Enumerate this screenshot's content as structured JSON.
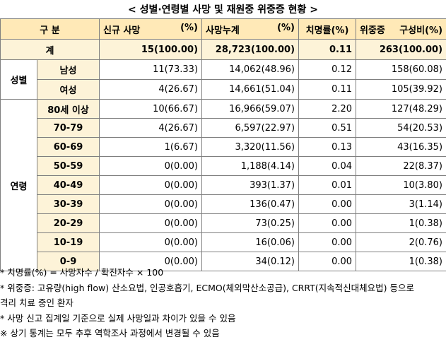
{
  "title": "< 성별·연령별 사망 및 재원중 위중증 현황 >",
  "header": {
    "category": "구 분",
    "new_deaths": "신규 사망",
    "new_deaths_unit": "(%)",
    "cumulative": "사망누계",
    "cumulative_unit": "(%)",
    "fatality": "치명률(%)",
    "critical": "위중증",
    "critical_unit": "구성비(%)"
  },
  "total": {
    "label": "계",
    "new": "15(100.00)",
    "cum": "28,723(100.00)",
    "rate": "0.11",
    "crit": "263(100.00)"
  },
  "sex": {
    "label": "성별",
    "rows": [
      {
        "label": "남성",
        "new": "11(73.33)",
        "cum": "14,062(48.96)",
        "rate": "0.12",
        "crit": "158(60.08)"
      },
      {
        "label": "여성",
        "new": "4(26.67)",
        "cum": "14,661(51.04)",
        "rate": "0.11",
        "crit": "105(39.92)"
      }
    ]
  },
  "age": {
    "label": "연령",
    "rows": [
      {
        "label": "80세 이상",
        "new": "10(66.67)",
        "cum": "16,966(59.07)",
        "rate": "2.20",
        "crit": "127(48.29)"
      },
      {
        "label": "70-79",
        "new": "4(26.67)",
        "cum": "6,597(22.97)",
        "rate": "0.51",
        "crit": "54(20.53)"
      },
      {
        "label": "60-69",
        "new": "1(6.67)",
        "cum": "3,320(11.56)",
        "rate": "0.13",
        "crit": "43(16.35)"
      },
      {
        "label": "50-59",
        "new": "0(0.00)",
        "cum": "1,188(4.14)",
        "rate": "0.04",
        "crit": "22(8.37)"
      },
      {
        "label": "40-49",
        "new": "0(0.00)",
        "cum": "393(1.37)",
        "rate": "0.01",
        "crit": "10(3.80)"
      },
      {
        "label": "30-39",
        "new": "0(0.00)",
        "cum": "136(0.47)",
        "rate": "0.00",
        "crit": "3(1.14)"
      },
      {
        "label": "20-29",
        "new": "0(0.00)",
        "cum": "73(0.25)",
        "rate": "0.00",
        "crit": "1(0.38)"
      },
      {
        "label": "10-19",
        "new": "0(0.00)",
        "cum": "16(0.06)",
        "rate": "0.00",
        "crit": "2(0.76)"
      },
      {
        "label": "0-9",
        "new": "0(0.00)",
        "cum": "34(0.12)",
        "rate": "0.00",
        "crit": "1(0.38)"
      }
    ]
  },
  "notes": [
    "* 치명률(%) = 사망자수 / 확진자수 × 100",
    "* 위중증: 고유량(high flow) 산소요법, 인공호흡기, ECMO(체외막산소공급), CRRT(지속적신대체요법) 등으로",
    "격리 치료 중인 환자",
    "* 사망 신고 집계일 기준으로 실제 사망일과 차이가 있을 수 있음",
    "※ 상기 통계는 모두 추후 역학조사 과정에서 변경될 수 있음"
  ]
}
